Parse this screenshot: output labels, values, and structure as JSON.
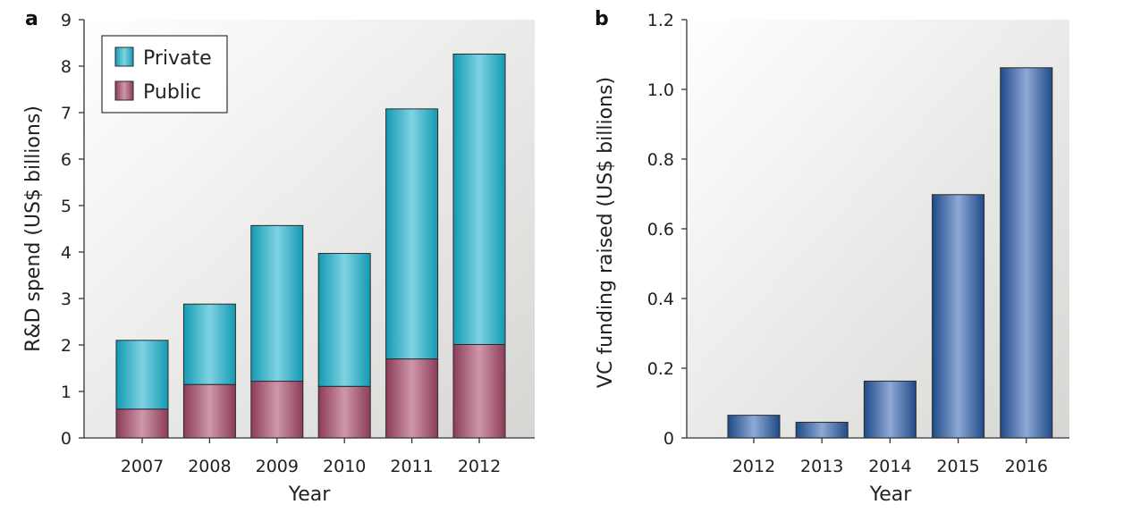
{
  "chart_data": [
    {
      "type": "bar",
      "stacked": true,
      "panel_label": "a",
      "categories": [
        "2007",
        "2008",
        "2009",
        "2010",
        "2011",
        "2012"
      ],
      "series": [
        {
          "name": "Public",
          "color": "#a14f6c",
          "values": [
            0.62,
            1.15,
            1.22,
            1.11,
            1.7,
            2.01
          ]
        },
        {
          "name": "Private",
          "color": "#2bb3c9",
          "values": [
            1.48,
            1.73,
            3.35,
            2.86,
            5.38,
            6.25
          ]
        }
      ],
      "xlabel": "Year",
      "ylabel": "R&D spend (US$ billions)",
      "ylim": [
        0,
        9
      ],
      "yticks": [
        "0",
        "1",
        "2",
        "3",
        "4",
        "5",
        "6",
        "7",
        "8",
        "9"
      ],
      "grid": false,
      "legend": "top-left"
    },
    {
      "type": "bar",
      "panel_label": "b",
      "categories": [
        "2012",
        "2013",
        "2014",
        "2015",
        "2016"
      ],
      "series": [
        {
          "color": "#2f5d9e",
          "values": [
            0.065,
            0.045,
            0.163,
            0.698,
            1.062
          ]
        }
      ],
      "xlabel": "Year",
      "ylabel": "VC funding raised (US$ billions)",
      "ylim": [
        0,
        1.2
      ],
      "yticks": [
        "0",
        "0.2",
        "0.4",
        "0.6",
        "0.8",
        "1.0",
        "1.2"
      ],
      "grid": false
    }
  ]
}
